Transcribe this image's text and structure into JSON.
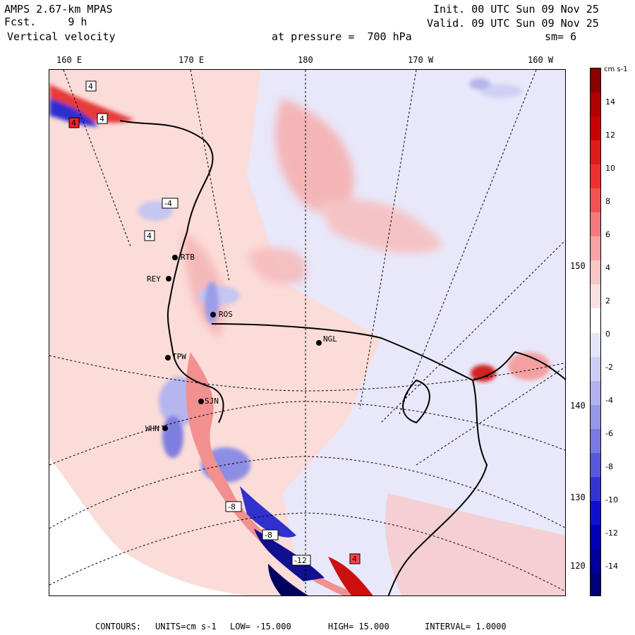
{
  "header": {
    "model": "AMPS 2.67-km MPAS",
    "fcst_label": "Fcst.",
    "fcst_value": "9 h",
    "field": "Vertical velocity",
    "init": "Init. 00 UTC Sun 09 Nov 25",
    "valid": "Valid. 09 UTC Sun 09 Nov 25",
    "level": "at pressure =  700 hPa",
    "smoothing": "sm= 6"
  },
  "longitude_labels": [
    "160 E",
    "170 E",
    "180",
    "170 W",
    "160 W"
  ],
  "latitude_labels": [
    "150 W",
    "140 W",
    "130 W",
    "120 W"
  ],
  "stations": [
    "ROS",
    "NGL",
    "REY",
    "TPW",
    "WHN",
    "RTB",
    "SJN"
  ],
  "box_labels": [
    "4",
    "4",
    "4",
    "-4",
    "4",
    "-8",
    "-8",
    "-12",
    "4"
  ],
  "colorbar": {
    "unit": "cm s-1",
    "ticks": [
      "14",
      "12",
      "10",
      "8",
      "6",
      "4",
      "2",
      "0",
      "-2",
      "-4",
      "-6",
      "-8",
      "-10",
      "-12",
      "-14"
    ],
    "colors_top_to_bottom": [
      "#8b0000",
      "#b30000",
      "#cc0000",
      "#e01b1b",
      "#f03030",
      "#f25252",
      "#f47b7b",
      "#f6a3a3",
      "#f9c6c6",
      "#fbe0e0",
      "#ffffff",
      "#e6e6fb",
      "#cdcdf5",
      "#b2b2ef",
      "#9797e8",
      "#7a7ae2",
      "#5858dc",
      "#3434d6",
      "#1010d0",
      "#0000b8",
      "#00009a",
      "#00007a"
    ]
  },
  "footer": {
    "contours_label": "CONTOURS:",
    "units": "UNITS=cm s-1",
    "low": "LOW= -15.000",
    "high": "HIGH=  15.000",
    "interval": "INTERVAL=   1.0000"
  }
}
